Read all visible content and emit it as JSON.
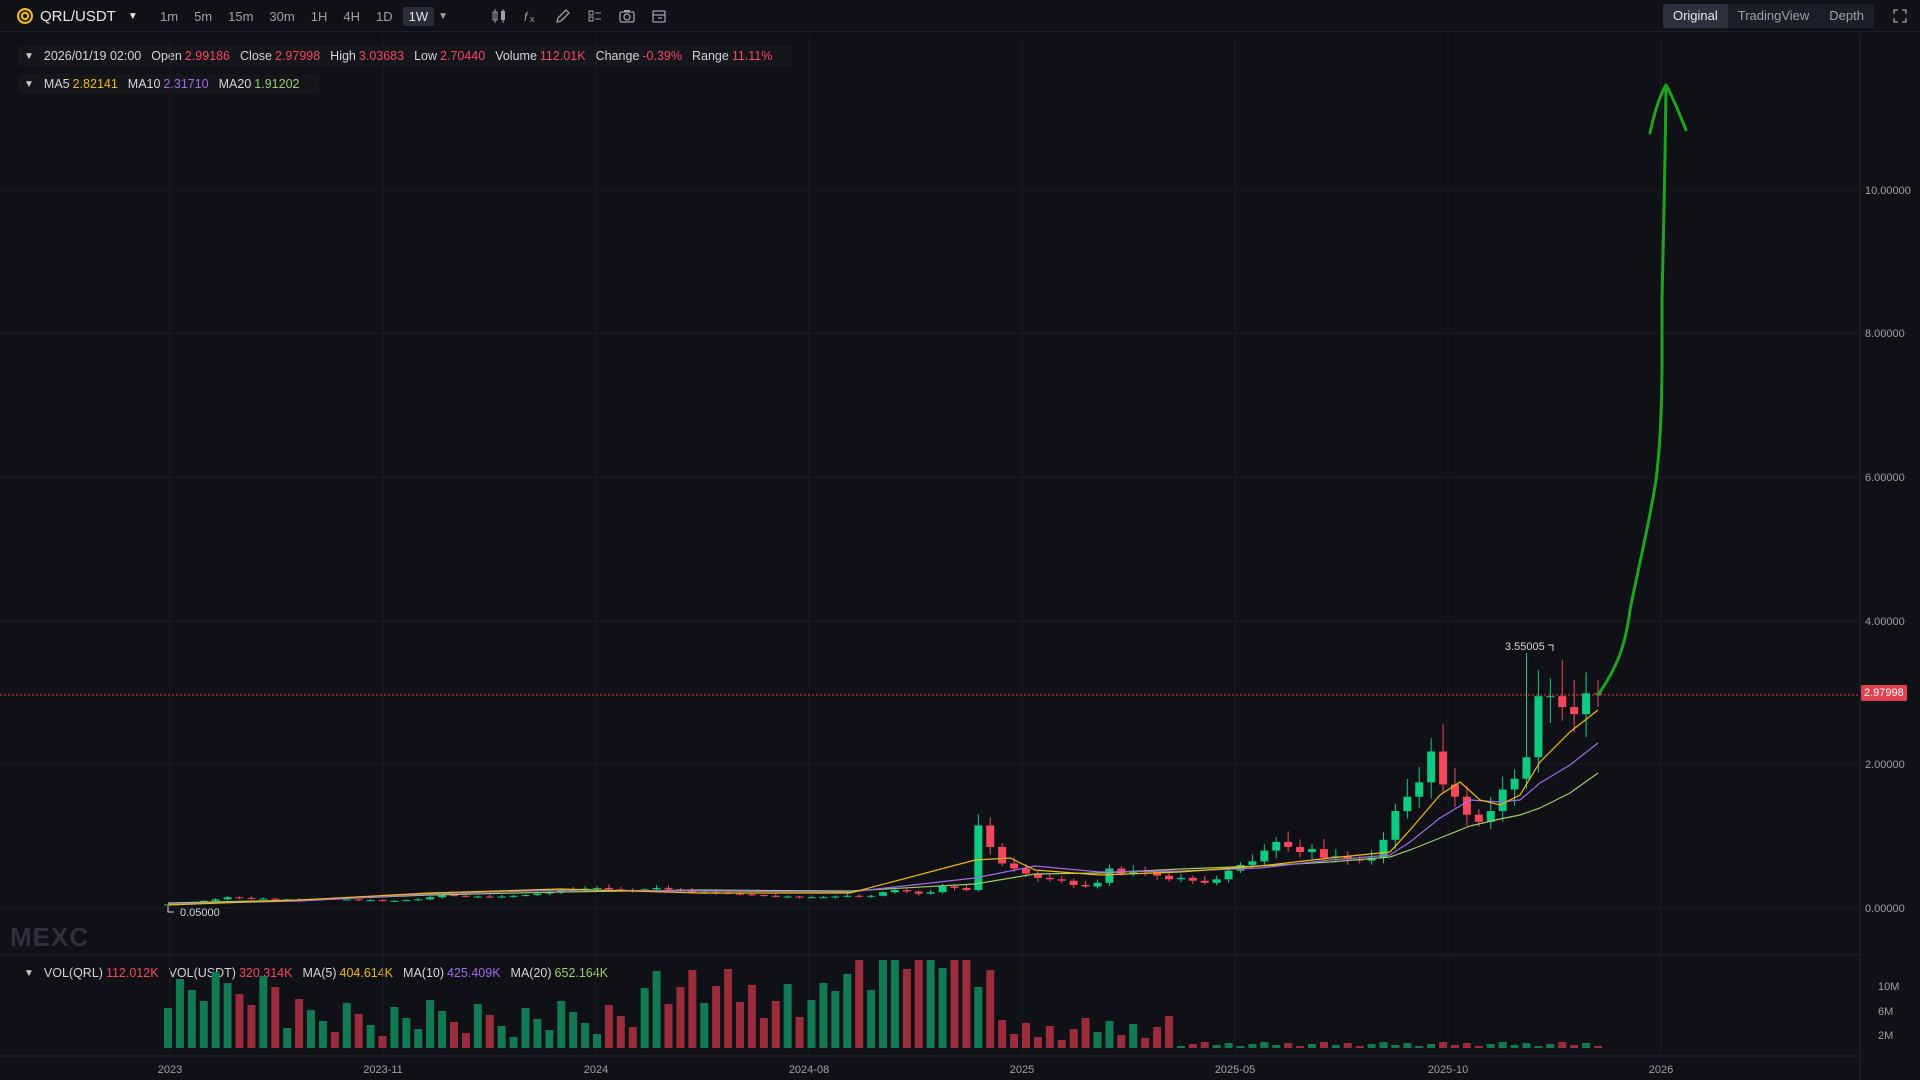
{
  "header": {
    "pair": "QRL/USDT",
    "intervals": [
      "1m",
      "5m",
      "15m",
      "30m",
      "1H",
      "4H",
      "1D",
      "1W"
    ],
    "active_interval": "1W",
    "views": [
      "Original",
      "TradingView",
      "Depth"
    ],
    "active_view": "Original"
  },
  "legend": {
    "date": "2026/01/19 02:00",
    "open_label": "Open",
    "open": "2.99186",
    "close_label": "Close",
    "close": "2.97998",
    "high_label": "High",
    "high": "3.03683",
    "low_label": "Low",
    "low": "2.70440",
    "volume_label": "Volume",
    "volume": "112.01K",
    "change_label": "Change",
    "change": "-0.39%",
    "range_label": "Range",
    "range": "11.11%"
  },
  "ma_legend": {
    "ma5_label": "MA5",
    "ma5": "2.82141",
    "ma10_label": "MA10",
    "ma10": "2.31710",
    "ma20_label": "MA20",
    "ma20": "1.91202"
  },
  "vol_legend": {
    "vol_qrl_label": "VOL(QRL)",
    "vol_qrl": "112.012K",
    "vol_usdt_label": "VOL(USDT)",
    "vol_usdt": "320.314K",
    "ma5_label": "MA(5)",
    "ma5": "404.614K",
    "ma10_label": "MA(10)",
    "ma10": "425.409K",
    "ma20_label": "MA(20)",
    "ma20": "652.164K"
  },
  "price_axis": [
    "10.00000",
    "8.00000",
    "6.00000",
    "4.00000",
    "2.00000",
    "0.00000"
  ],
  "volume_axis": [
    "10M",
    "6M",
    "2M"
  ],
  "time_axis": [
    "2023",
    "2023-11",
    "2024",
    "2024-08",
    "2025",
    "2025-05",
    "2025-10",
    "2026"
  ],
  "current_price": "2.97998",
  "high_marker": "3.55005",
  "low_marker": "0.05000",
  "watermark": "MEXC",
  "colors": {
    "up": "#0ecb81",
    "down": "#f6465d",
    "ma5": "#f0b90b",
    "ma10": "#a06ae8",
    "ma20": "#9ccc65",
    "drawing": "#1fa31f"
  }
}
